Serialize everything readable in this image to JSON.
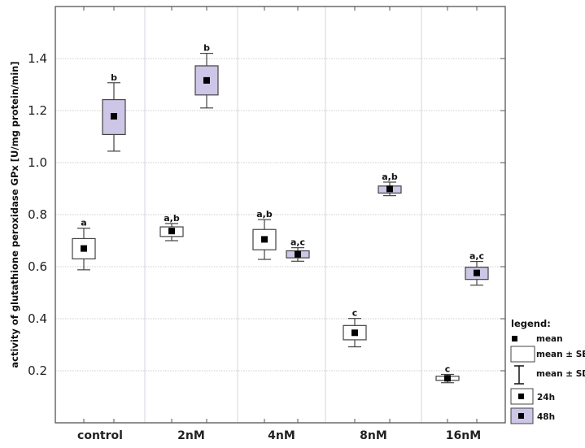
{
  "chart_data": {
    "type": "box",
    "ylabel": "activity of glutathione peroxidase GPx [U/mg protein/min]",
    "ylim": [
      0,
      1.6
    ],
    "yticks": [
      0.2,
      0.4,
      0.6,
      0.8,
      1.0,
      1.2,
      1.4
    ],
    "ytick_labels": [
      "0.2",
      "0.4",
      "0.6",
      "0.8",
      "1.0",
      "1.2",
      "1.4"
    ],
    "grid": "horizontal dotted",
    "categories": [
      "control",
      "2nM",
      "4nM",
      "8nM",
      "16nM"
    ],
    "series": [
      {
        "name": "24h",
        "fill": "#ffffff",
        "mean": [
          0.67,
          0.737,
          0.705,
          0.346,
          0.171
        ],
        "se_low": [
          0.63,
          0.716,
          0.665,
          0.319,
          0.163
        ],
        "se_high": [
          0.708,
          0.753,
          0.743,
          0.374,
          0.179
        ],
        "sd_low": [
          0.588,
          0.7,
          0.628,
          0.292,
          0.154
        ],
        "sd_high": [
          0.748,
          0.766,
          0.781,
          0.401,
          0.186
        ],
        "labels": [
          "a",
          "a,b",
          "a,b",
          "c",
          "c"
        ]
      },
      {
        "name": "48h",
        "fill": "#cdc6e6",
        "mean": [
          1.178,
          1.316,
          0.648,
          0.899,
          0.576
        ],
        "se_low": [
          1.108,
          1.26,
          0.634,
          0.883,
          0.551
        ],
        "se_high": [
          1.242,
          1.372,
          0.661,
          0.91,
          0.598
        ],
        "sd_low": [
          1.044,
          1.21,
          0.621,
          0.873,
          0.529
        ],
        "sd_high": [
          1.307,
          1.42,
          0.673,
          0.925,
          0.62
        ],
        "labels": [
          "b",
          "b",
          "a,c",
          "a,b",
          "a,c"
        ]
      }
    ],
    "legend": {
      "title": "legend:",
      "mean": "mean",
      "se": "mean ± SE",
      "sd": "mean ± SD",
      "placement": "right"
    }
  }
}
